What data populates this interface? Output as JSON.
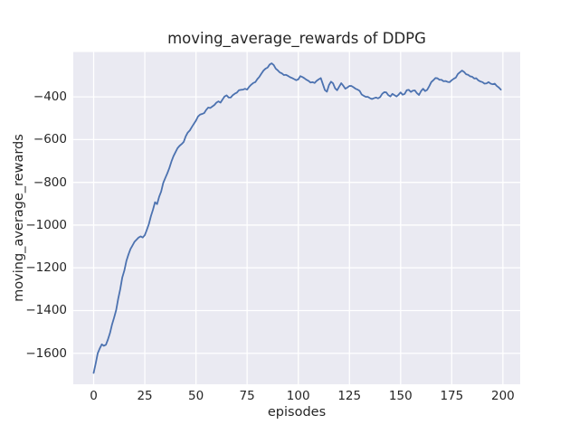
{
  "figure": {
    "title": "moving_average_rewards of DDPG",
    "xlabel": "episodes",
    "ylabel": "moving_average_rewards"
  },
  "colors": {
    "figure_background": "#ffffff",
    "axes_background": "#eaeaf2",
    "grid": "#ffffff",
    "line": "#4c72b0",
    "text": "#262626"
  },
  "chart_data": {
    "type": "line",
    "title": "moving_average_rewards of DDPG",
    "xlabel": "episodes",
    "ylabel": "moving_average_rewards",
    "grid": true,
    "legend_position": "none",
    "xlim": [
      -9.95,
      208.45
    ],
    "ylim": [
      -1745,
      -190
    ],
    "x_ticks": [
      0,
      25,
      50,
      75,
      100,
      125,
      150,
      175,
      200
    ],
    "x_tick_labels": [
      "0",
      "25",
      "50",
      "75",
      "100",
      "125",
      "150",
      "175",
      "200"
    ],
    "y_ticks": [
      -400,
      -600,
      -800,
      -1000,
      -1200,
      -1400,
      -1600
    ],
    "y_tick_labels": [
      "−400",
      "−600",
      "−800",
      "−1000",
      "−1200",
      "−1400",
      "−1600"
    ],
    "series": [
      {
        "name": "moving_average_rewards",
        "color": "#4c72b0",
        "x_is_episode_index": true,
        "x_start": 0,
        "x_step": 1,
        "values": [
          -1692,
          -1648,
          -1600,
          -1577,
          -1558,
          -1565,
          -1560,
          -1535,
          -1505,
          -1465,
          -1433,
          -1398,
          -1345,
          -1300,
          -1245,
          -1213,
          -1168,
          -1138,
          -1112,
          -1095,
          -1078,
          -1068,
          -1058,
          -1053,
          -1058,
          -1047,
          -1022,
          -995,
          -958,
          -928,
          -893,
          -902,
          -868,
          -843,
          -803,
          -780,
          -758,
          -733,
          -703,
          -678,
          -659,
          -640,
          -629,
          -621,
          -611,
          -585,
          -567,
          -557,
          -541,
          -526,
          -511,
          -492,
          -483,
          -480,
          -476,
          -461,
          -450,
          -452,
          -445,
          -438,
          -427,
          -421,
          -427,
          -412,
          -398,
          -393,
          -403,
          -403,
          -392,
          -385,
          -380,
          -369,
          -367,
          -366,
          -362,
          -366,
          -353,
          -343,
          -335,
          -331,
          -317,
          -306,
          -291,
          -277,
          -268,
          -263,
          -249,
          -243,
          -251,
          -268,
          -276,
          -286,
          -290,
          -298,
          -297,
          -302,
          -308,
          -312,
          -317,
          -322,
          -318,
          -303,
          -307,
          -313,
          -320,
          -325,
          -333,
          -331,
          -335,
          -325,
          -318,
          -312,
          -340,
          -368,
          -376,
          -345,
          -329,
          -337,
          -360,
          -369,
          -352,
          -336,
          -348,
          -362,
          -356,
          -349,
          -349,
          -355,
          -362,
          -366,
          -372,
          -389,
          -395,
          -400,
          -400,
          -406,
          -410,
          -406,
          -403,
          -407,
          -401,
          -386,
          -378,
          -379,
          -392,
          -398,
          -386,
          -392,
          -398,
          -390,
          -379,
          -390,
          -386,
          -369,
          -367,
          -377,
          -371,
          -370,
          -383,
          -391,
          -373,
          -362,
          -373,
          -367,
          -350,
          -331,
          -322,
          -312,
          -313,
          -320,
          -320,
          -327,
          -326,
          -330,
          -331,
          -322,
          -315,
          -310,
          -293,
          -285,
          -277,
          -283,
          -294,
          -297,
          -304,
          -306,
          -314,
          -313,
          -323,
          -328,
          -331,
          -338,
          -337,
          -331,
          -338,
          -341,
          -338,
          -349,
          -356,
          -366
        ]
      }
    ]
  }
}
